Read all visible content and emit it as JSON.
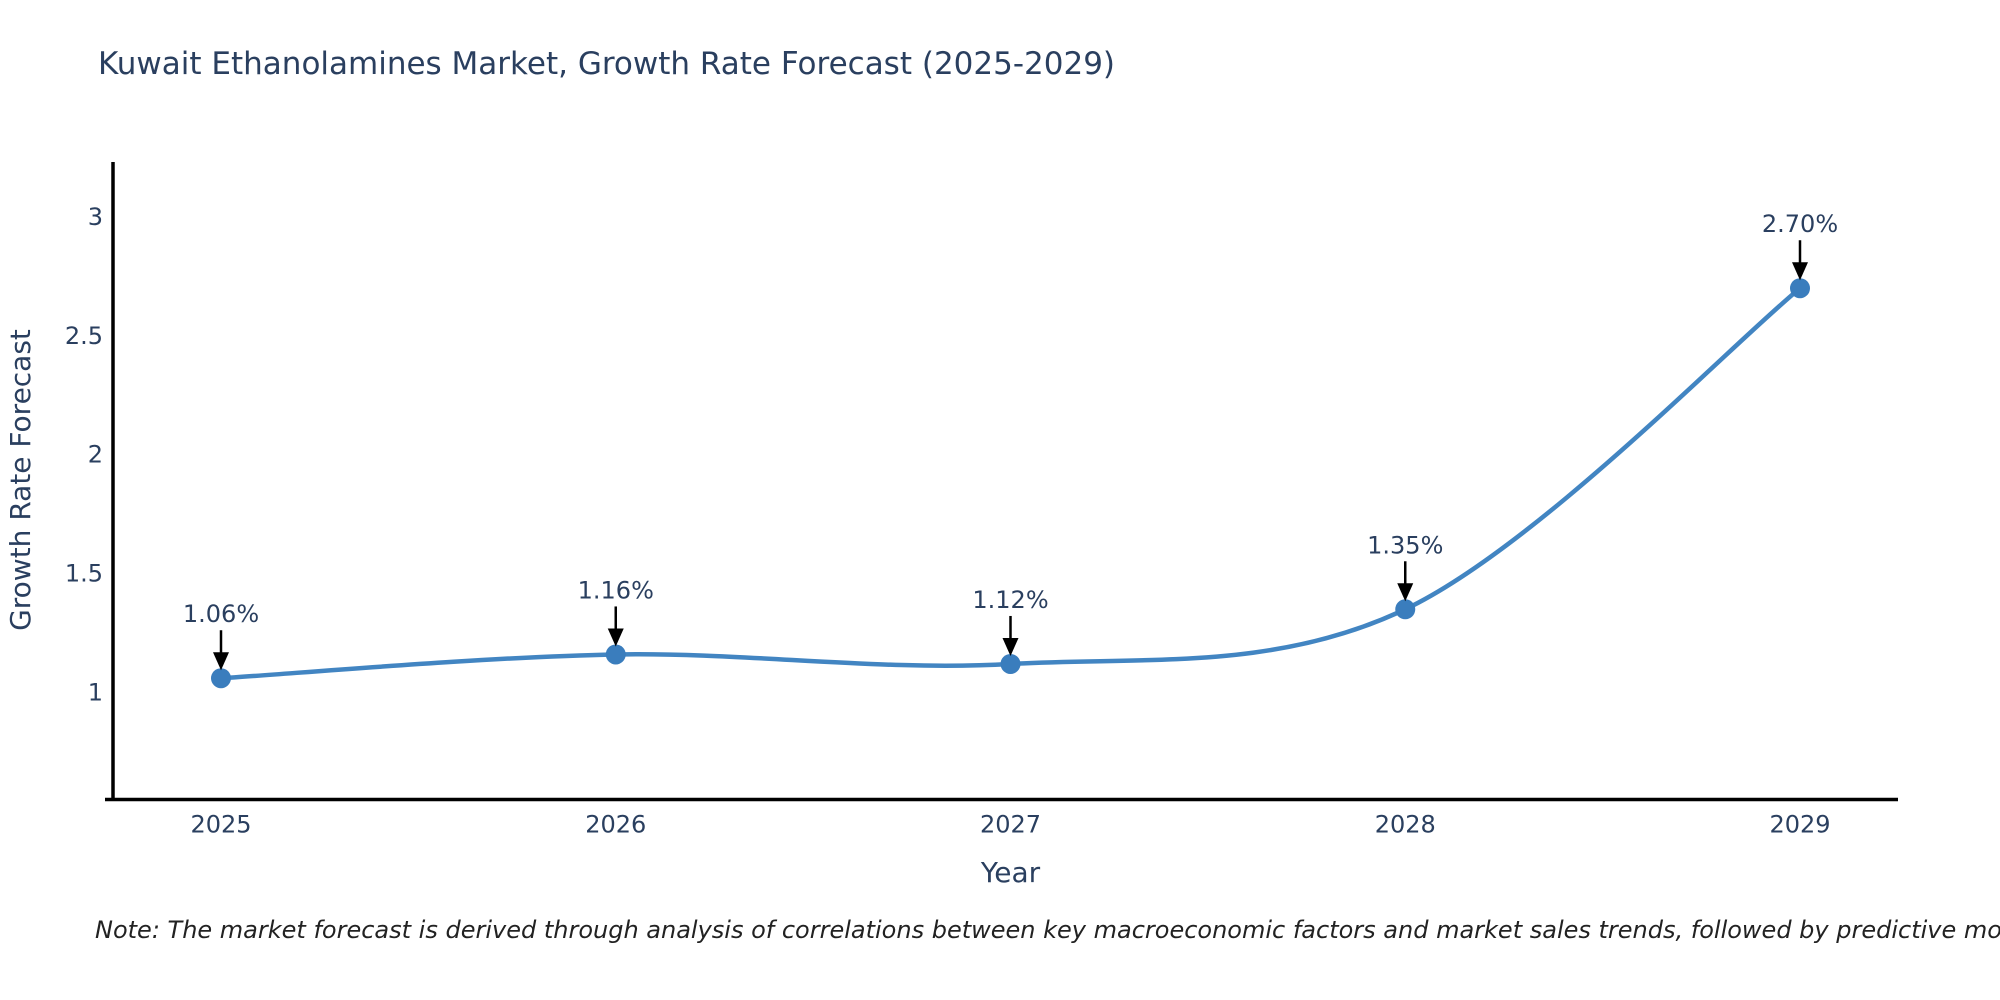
{
  "title": "Kuwait Ethanolamines Market, Growth Rate Forecast (2025-2029)",
  "note": "Note: The market forecast is derived through analysis of correlations between key macroeconomic factors and market sales trends, followed by predictive modeling to project future sales",
  "chart_data": {
    "type": "line",
    "title": "Kuwait Ethanolamines Market, Growth Rate Forecast (2025-2029)",
    "xlabel": "Year",
    "ylabel": "Growth Rate Forecast",
    "x": [
      2025,
      2026,
      2027,
      2028,
      2029
    ],
    "series": [
      {
        "name": "Growth Rate Forecast",
        "values": [
          1.06,
          1.16,
          1.12,
          1.35,
          2.7
        ],
        "point_labels": [
          "1.06%",
          "1.16%",
          "1.12%",
          "1.35%",
          "2.70%"
        ]
      }
    ],
    "yticks": [
      1,
      1.5,
      2,
      2.5,
      3
    ],
    "xticks": [
      "2025",
      "2026",
      "2027",
      "2028",
      "2029"
    ],
    "ylim": [
      0.55,
      3.23
    ],
    "xlim": [
      2024.72,
      2029.25
    ],
    "grid": false,
    "legend_position": "none",
    "curve": "spline",
    "colors": {
      "line": "#4285c2",
      "marker": "#3a7dbd",
      "axis": "#000000",
      "text": "#2a3f5f",
      "arrow": "#000000"
    }
  }
}
